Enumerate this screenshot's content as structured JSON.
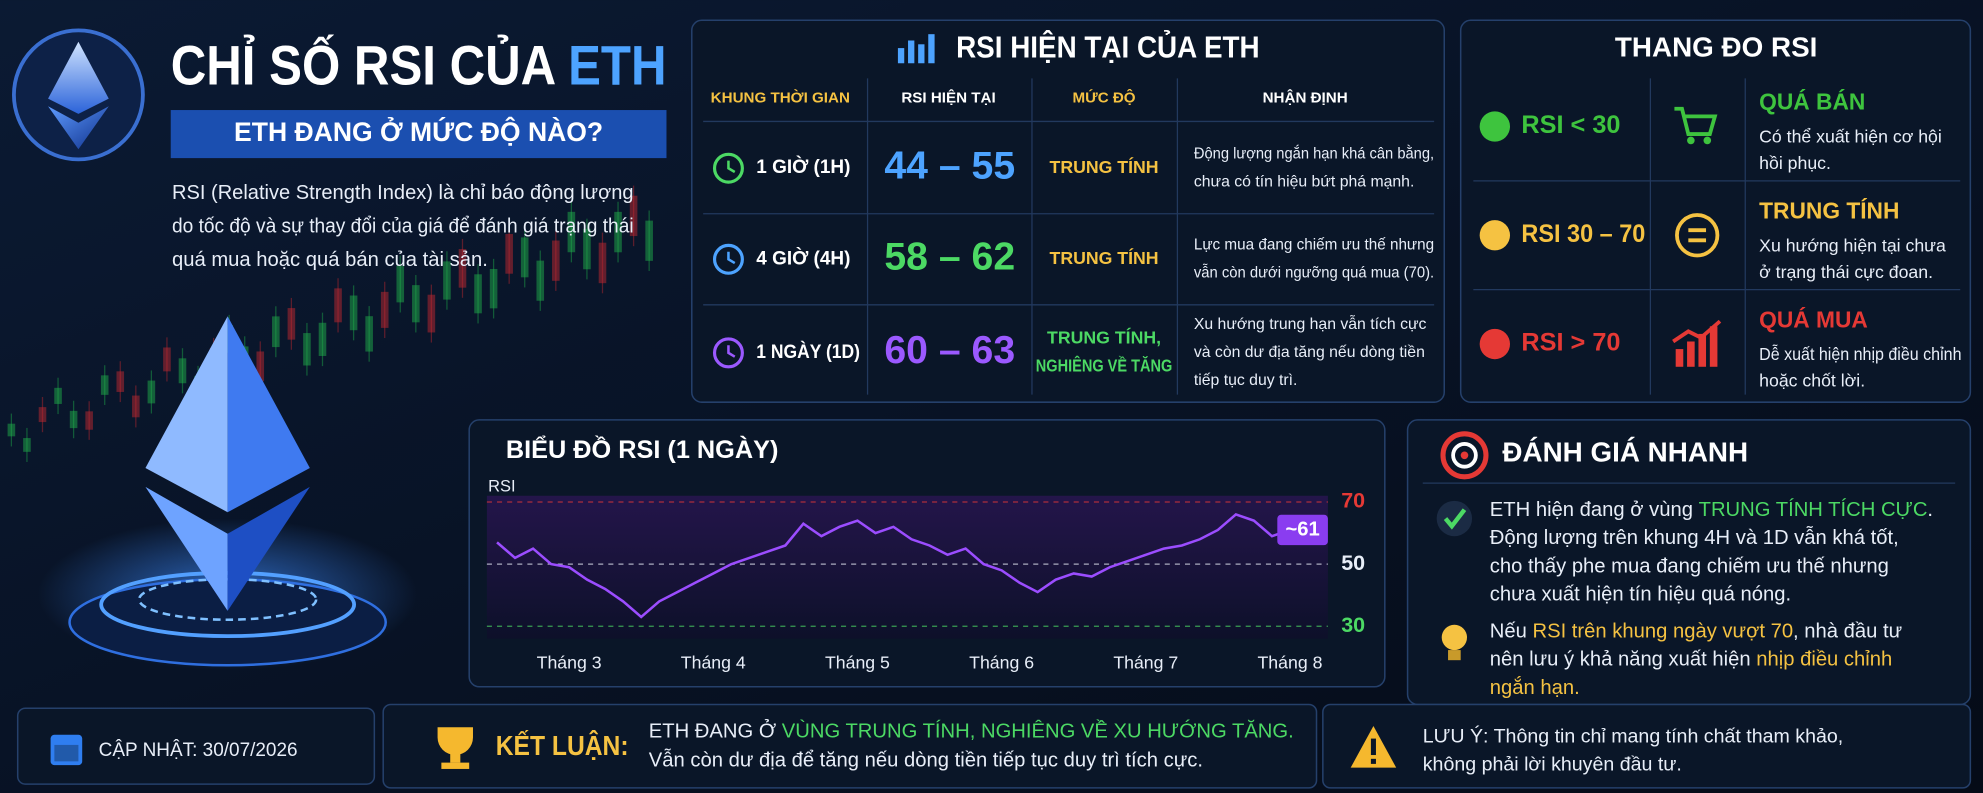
{
  "header": {
    "title": [
      "CHỈ SỐ RSI CỦA ",
      {
        "text": "ETH",
        "color": "#4da3ff"
      }
    ],
    "subtitle": "ETH ĐANG Ở MỨC ĐỘ NÀO?",
    "description": [
      "RSI (Relative Strength Index) là chỉ báo động lượng",
      "do tốc độ và sự thay đổi của giá để đánh giá trạng thái",
      "quá mua hoặc quá bán của tài sản."
    ]
  },
  "table": {
    "title": "RSI HIỆN TẠI CỦA ETH",
    "headers": [
      "KHUNG THỜI GIAN",
      "RSI HIỆN TẠI",
      "MỨC ĐỘ",
      "NHẬN ĐỊNH"
    ],
    "rows": [
      {
        "timeframe": "1 GIỜ (1H)",
        "rsi": "44 – 55",
        "color": "#4da3ff",
        "level": [
          "TRUNG TÍNH"
        ],
        "level_color": "#f5c242",
        "comment": [
          "Động lượng ngắn hạn khá cân bằng,",
          "chưa có tín hiệu bứt phá mạnh."
        ]
      },
      {
        "timeframe": "4 GIỜ (4H)",
        "rsi": "58 – 62",
        "color": "#4cd964",
        "level": [
          "TRUNG TÍNH"
        ],
        "level_color": "#f5c242",
        "comment": [
          "Lực mua đang chiếm ưu thế nhưng",
          "vẫn còn dưới ngưỡng quá mua (70)."
        ]
      },
      {
        "timeframe": "1 NGÀY (1D)",
        "rsi": "60 – 63",
        "color": "#9b59ff",
        "level": [
          "TRUNG TÍNH,",
          "NGHIÊNG VỀ TĂNG"
        ],
        "level_color": "#4cd964",
        "comment": [
          "Xu hướng trung hạn vẫn tích cực",
          "và còn dư địa tăng nếu dòng tiền",
          "tiếp tục duy trì."
        ]
      }
    ]
  },
  "scale": {
    "title": "THANG ĐO RSI",
    "rows": [
      {
        "range": "RSI < 30",
        "label": "QUÁ BÁN",
        "color": "#3ec43e",
        "desc": [
          "Có thể xuất hiện cơ hội",
          "hồi phục."
        ]
      },
      {
        "range": "RSI 30 – 70",
        "label": "TRUNG TÍNH",
        "color": "#f5c242",
        "desc": [
          "Xu hướng hiện tại chưa",
          "ở trạng thái cực đoan."
        ]
      },
      {
        "range": "RSI > 70",
        "label": "QUÁ MUA",
        "color": "#e53935",
        "desc": [
          "Dễ xuất hiện nhịp điều chỉnh",
          "hoặc chốt lời."
        ]
      }
    ]
  },
  "chart_data": {
    "type": "line",
    "title": "BIỂU ĐỒ RSI (1 NGÀY)",
    "ylabel": "RSI",
    "categories": [
      null,
      null,
      null,
      null,
      "Tháng 3",
      null,
      null,
      null,
      null,
      null,
      null,
      null,
      "Tháng 4",
      null,
      null,
      null,
      null,
      null,
      null,
      null,
      "Tháng 5",
      null,
      null,
      null,
      null,
      null,
      null,
      null,
      "Tháng 6",
      null,
      null,
      null,
      null,
      null,
      null,
      null,
      "Tháng 7",
      null,
      null,
      null,
      null,
      null,
      null,
      null,
      "Tháng 8"
    ],
    "values": [
      57,
      52,
      55,
      50,
      49,
      45,
      42,
      38,
      33,
      38,
      41,
      44,
      47,
      50,
      52,
      54,
      56,
      63,
      59,
      62,
      64,
      60,
      62,
      58,
      56,
      53,
      55,
      50,
      48,
      44,
      41,
      45,
      47,
      46,
      49,
      51,
      53,
      55,
      56,
      58,
      61,
      66,
      64,
      59,
      61
    ],
    "color": "#9b4dff",
    "ylim": [
      26,
      72
    ],
    "yticks": [
      70,
      50,
      30
    ],
    "ytick_colors": [
      "#e53935",
      "#e8eef8",
      "#4cd964"
    ],
    "end_label": "~61"
  },
  "assessment": {
    "title": "ĐÁNH GIÁ NHANH",
    "items": [
      {
        "lines": [
          [
            "ETH hiện đang ở vùng ",
            {
              "text": "TRUNG TÍNH TÍCH CỰC",
              "color": "#4cd964"
            },
            "."
          ],
          [
            "Động lượng trên khung 4H và 1D vẫn khá tốt,"
          ],
          [
            "cho thấy phe mua đang chiếm ưu thế nhưng"
          ],
          [
            "chưa xuất hiện tín hiệu quá nóng."
          ]
        ]
      },
      {
        "lines": [
          [
            "Nếu ",
            {
              "text": "RSI trên khung ngày vượt 70",
              "color": "#f5c242"
            },
            ", nhà đầu tư"
          ],
          [
            "nên lưu ý khả năng xuất hiện ",
            {
              "text": "nhịp điều chỉnh",
              "color": "#f5c242"
            }
          ],
          [
            {
              "text": "ngắn hạn.",
              "color": "#f5c242"
            }
          ]
        ]
      }
    ]
  },
  "footer": {
    "updated": "CẬP NHẬT: 30/07/2026",
    "conclusion_label": "KẾT LUẬN:",
    "conclusion": [
      [
        "ETH ĐANG Ở ",
        {
          "text": "VÙNG TRUNG TÍNH, NGHIÊNG VỀ XU HƯỚNG TĂNG.",
          "color": "#4cd964"
        }
      ],
      [
        "Vẫn còn dư địa để tăng nếu dòng tiền tiếp tục duy trì tích cực."
      ]
    ],
    "note": [
      "LƯU Ý: Thông tin chỉ mang tính chất tham khảo,",
      "không phải lời khuyên đầu tư."
    ]
  }
}
